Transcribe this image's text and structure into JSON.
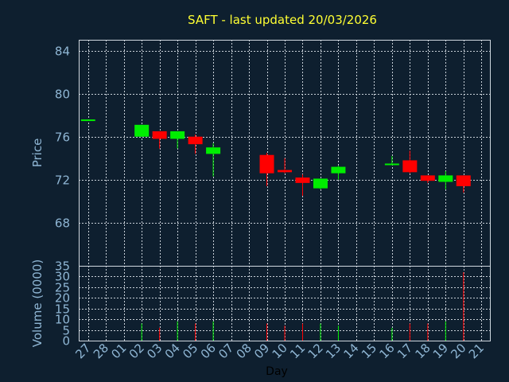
{
  "chart_data": {
    "type": "candlestick",
    "title": "SAFT - last updated 20/03/2026",
    "xlabel": "Day",
    "price_panel": {
      "ylabel": "Price",
      "ylim": [
        64,
        85
      ],
      "yticks": [
        68,
        72,
        76,
        80,
        84
      ]
    },
    "volume_panel": {
      "ylabel": "Volume (0000)",
      "ylim": [
        0,
        35
      ],
      "yticks": [
        0,
        5,
        10,
        15,
        20,
        25,
        30,
        35
      ]
    },
    "x_ticks": [
      "27",
      "28",
      "01",
      "02",
      "03",
      "04",
      "05",
      "06",
      "07",
      "08",
      "09",
      "10",
      "11",
      "12",
      "13",
      "14",
      "15",
      "16",
      "17",
      "18",
      "19",
      "20",
      "21"
    ],
    "colors": {
      "up": "#00ee00",
      "down": "#ff0000",
      "background": "#0e1f2f",
      "title": "#ffff33",
      "axis_text": "#8fb6d4"
    },
    "candles": [
      {
        "day": "27",
        "open": 77.6,
        "high": 77.6,
        "low": 77.6,
        "close": 77.6,
        "volume": 0
      },
      {
        "day": "02",
        "open": 76.0,
        "high": 77.1,
        "low": 76.0,
        "close": 77.1,
        "volume": 8
      },
      {
        "day": "03",
        "open": 76.5,
        "high": 76.5,
        "low": 74.9,
        "close": 75.8,
        "volume": 6
      },
      {
        "day": "04",
        "open": 75.8,
        "high": 76.5,
        "low": 74.9,
        "close": 76.5,
        "volume": 9
      },
      {
        "day": "05",
        "open": 76.0,
        "high": 76.2,
        "low": 74.4,
        "close": 75.3,
        "volume": 8
      },
      {
        "day": "06",
        "open": 74.4,
        "high": 75.4,
        "low": 72.3,
        "close": 75.0,
        "volume": 9
      },
      {
        "day": "09",
        "open": 74.3,
        "high": 74.5,
        "low": 71.4,
        "close": 72.6,
        "volume": 8
      },
      {
        "day": "10",
        "open": 72.9,
        "high": 74.0,
        "low": 72.6,
        "close": 72.7,
        "volume": 7
      },
      {
        "day": "11",
        "open": 72.2,
        "high": 72.5,
        "low": 70.5,
        "close": 71.7,
        "volume": 8
      },
      {
        "day": "12",
        "open": 71.2,
        "high": 72.1,
        "low": 71.1,
        "close": 72.1,
        "volume": 8
      },
      {
        "day": "13",
        "open": 72.6,
        "high": 73.3,
        "low": 72.0,
        "close": 73.2,
        "volume": 7
      },
      {
        "day": "16",
        "open": 73.5,
        "high": 74.2,
        "low": 73.4,
        "close": 73.5,
        "volume": 6
      },
      {
        "day": "17",
        "open": 73.8,
        "high": 74.7,
        "low": 72.6,
        "close": 72.7,
        "volume": 8
      },
      {
        "day": "18",
        "open": 72.4,
        "high": 72.4,
        "low": 71.7,
        "close": 71.9,
        "volume": 8
      },
      {
        "day": "19",
        "open": 71.8,
        "high": 72.8,
        "low": 71.1,
        "close": 72.4,
        "volume": 9
      },
      {
        "day": "20",
        "open": 72.4,
        "high": 72.4,
        "low": 70.8,
        "close": 71.4,
        "volume": 32
      }
    ]
  }
}
